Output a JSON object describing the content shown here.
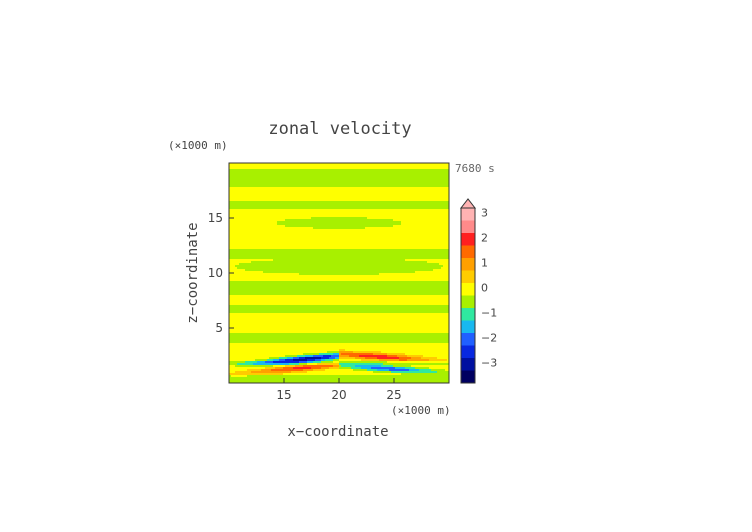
{
  "chart_data": {
    "type": "heatmap",
    "title": "zonal velocity",
    "xlabel": "x−coordinate",
    "ylabel": "z−coordinate",
    "x_unit": "(×1000 m)",
    "y_unit": "(×1000 m)",
    "time_label": "7680 s",
    "xlim": [
      10,
      30
    ],
    "ylim": [
      0,
      20
    ],
    "x_ticks": [
      15,
      20,
      25
    ],
    "y_ticks": [
      5,
      10,
      15
    ],
    "colorbar": {
      "ticks": [
        "3",
        "2",
        "1",
        "0",
        "−1",
        "−2",
        "−3"
      ],
      "levels": [
        {
          "min": 3.0,
          "color": "#ffb3b3"
        },
        {
          "min": 2.5,
          "color": "#ff8a8a"
        },
        {
          "min": 2.0,
          "color": "#ff2020"
        },
        {
          "min": 1.5,
          "color": "#ff6a00"
        },
        {
          "min": 1.0,
          "color": "#ffa000"
        },
        {
          "min": 0.5,
          "color": "#ffcc00"
        },
        {
          "min": 0.0,
          "color": "#ffff00"
        },
        {
          "min": -0.5,
          "color": "#a8f000"
        },
        {
          "min": -1.0,
          "color": "#30e8a0"
        },
        {
          "min": -1.5,
          "color": "#18b8f0"
        },
        {
          "min": -2.0,
          "color": "#2060ff"
        },
        {
          "min": -2.5,
          "color": "#0828e0"
        },
        {
          "min": -3.0,
          "color": "#0010a0"
        },
        {
          "min": -99,
          "color": "#000060"
        }
      ]
    },
    "features": [
      {
        "name": "lower-negative-jet-left",
        "xc": 17.2,
        "zc": 2.2,
        "halfwidth_x": 4.6,
        "halfwidth_z": 0.3,
        "amplitude": -1.9
      },
      {
        "name": "lower-positive-jet-left",
        "xc": 16.5,
        "zc": 1.35,
        "halfwidth_x": 5.2,
        "halfwidth_z": 0.28,
        "amplitude": 1.2
      },
      {
        "name": "lower-positive-jet-right",
        "xc": 23.5,
        "zc": 2.4,
        "halfwidth_x": 5.0,
        "halfwidth_z": 0.3,
        "amplitude": 1.3
      },
      {
        "name": "lower-negative-jet-right",
        "xc": 24.5,
        "zc": 1.3,
        "halfwidth_x": 4.8,
        "halfwidth_z": 0.28,
        "amplitude": -1.3
      }
    ],
    "background": "alternating horizontal bands of ~0 (yellow) and slightly negative (green) velocity, with a green lens near z=14.5 and a broad green bulge near z=10.5"
  }
}
